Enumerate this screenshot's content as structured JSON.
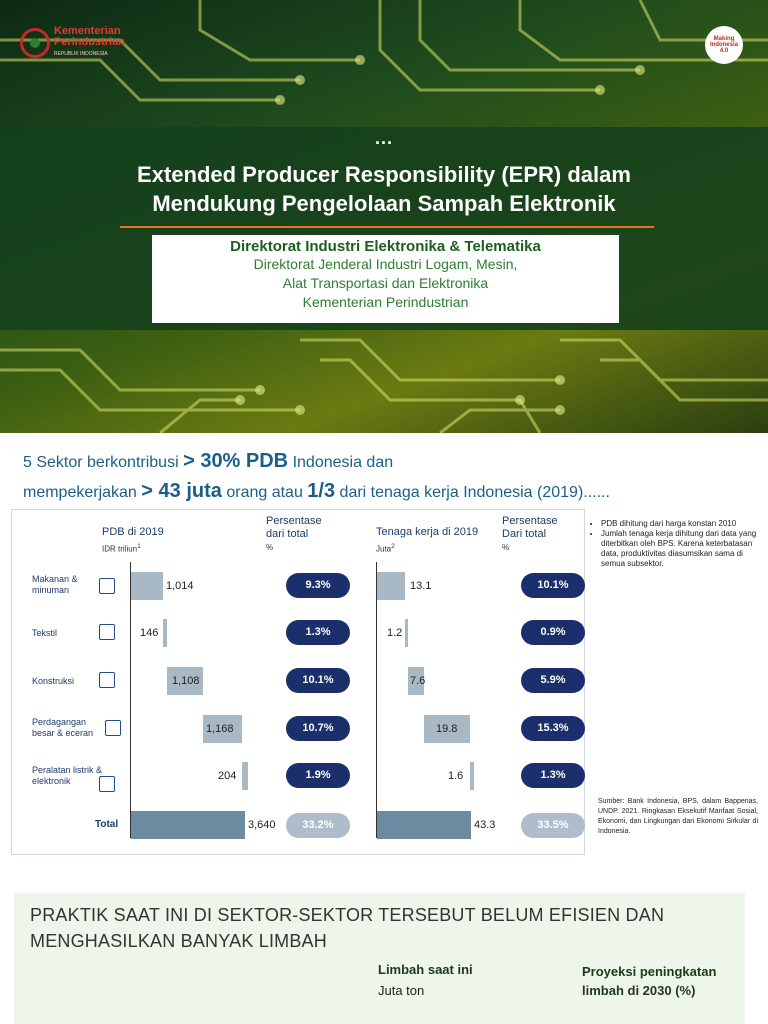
{
  "header": {
    "logo_left_line1": "Kementerian",
    "logo_left_line2": "Perindustrian",
    "logo_left_sub": "REPUBLIK INDONESIA",
    "logo_right_line1": "Making",
    "logo_right_line2": "Indonesia",
    "logo_right_line3": "4.0",
    "dots": "...",
    "title_line1": "Extended Producer Responsibility (EPR) dalam",
    "title_line2": "Mendukung Pengelolaan Sampah Elektronik",
    "directorate": "Direktorat Industri Elektronika & Telematika",
    "sub_line1": "Direktorat Jenderal Industri Logam, Mesin,",
    "sub_line2": "Alat Transportasi dan Elektronika",
    "sub_line3": "Kementerian Perindustrian"
  },
  "headline": {
    "p1": "5 Sektor berkontribusi ",
    "b1": "> 30% PDB",
    "p2": " Indonesia dan",
    "p3": "mempekerjakan ",
    "b2": "> 43 juta",
    "p4": " orang atau ",
    "b3": "1/3",
    "p5": " dari tenaga kerja Indonesia (2019)......"
  },
  "table": {
    "col_pdb": "PDB di 2019",
    "col_pdb_unit": "IDR triliun",
    "col_pdb_sup": "1",
    "col_pct1_l1": "Persentase",
    "col_pct1_l2": "dari total",
    "col_pct1_unit": "%",
    "col_tk": "Tenaga kerja di 2019",
    "col_tk_unit": "Juta",
    "col_tk_sup": "2",
    "col_pct2_l1": "Persentase",
    "col_pct2_l2": "Dari total",
    "col_pct2_unit": "%",
    "rows": [
      {
        "l1": "Makanan &",
        "l2": "minuman",
        "icon": "food-icon",
        "pdb": "1,014",
        "pdb_pct": "9.3%",
        "tk": "13.1",
        "tk_pct": "10.1%"
      },
      {
        "l1": "Tekstil",
        "l2": "",
        "icon": "textile-icon",
        "pdb": "146",
        "pdb_pct": "1.3%",
        "tk": "1.2",
        "tk_pct": "0.9%"
      },
      {
        "l1": "Konstruksi",
        "l2": "",
        "icon": "construction-icon",
        "pdb": "1,108",
        "pdb_pct": "10.1%",
        "tk": "7.6",
        "tk_pct": "5.9%"
      },
      {
        "l1": "Perdagangan",
        "l2": "besar & eceran",
        "icon": "cart-icon",
        "pdb": "1,168",
        "pdb_pct": "10.7%",
        "tk": "19.8",
        "tk_pct": "15.3%"
      },
      {
        "l1": "Peralatan listrik &",
        "l2": "elektronik",
        "icon": "device-icon",
        "pdb": "204",
        "pdb_pct": "1.9%",
        "tk": "1.6",
        "tk_pct": "1.3%"
      }
    ],
    "total": {
      "label": "Total",
      "pdb": "3,640",
      "pdb_pct": "33.2%",
      "tk": "43.3",
      "tk_pct": "33.5%"
    }
  },
  "notes": {
    "n1": "PDB dihitung dari harga konstan 2010",
    "n2": "Jumlah tenaga kerja dihitung dari data yang diterbitkan oleh BPS. Karena keterbatasan data, produktivitas diasumsikan sama di semua subsektor.",
    "source": "Sumber: Bank Indonesia, BPS, dalam Bappenas, UNDP. 2021. Ringkasan Eksekutif Manfaat Sosial, Ekonomi, dan Lingkungan dari Ekonomi Sirkular di Indonesia."
  },
  "bottom": {
    "title_l1": "PRAKTIK SAAT INI DI SEKTOR-SEKTOR TERSEBUT BELUM EFISIEN DAN",
    "title_l2": "MENGHASILKAN BANYAK LIMBAH",
    "col1": "Limbah saat ini",
    "col1_unit": "Juta ton",
    "col2_l1": "Proyeksi peningkatan",
    "col2_l2": "limbah di 2030 (%)"
  },
  "colors": {
    "accent_green": "#1b5e20",
    "accent_orange": "#e8731d",
    "pill_navy": "#1a2f6b",
    "headline_blue": "#1b5e8a"
  }
}
